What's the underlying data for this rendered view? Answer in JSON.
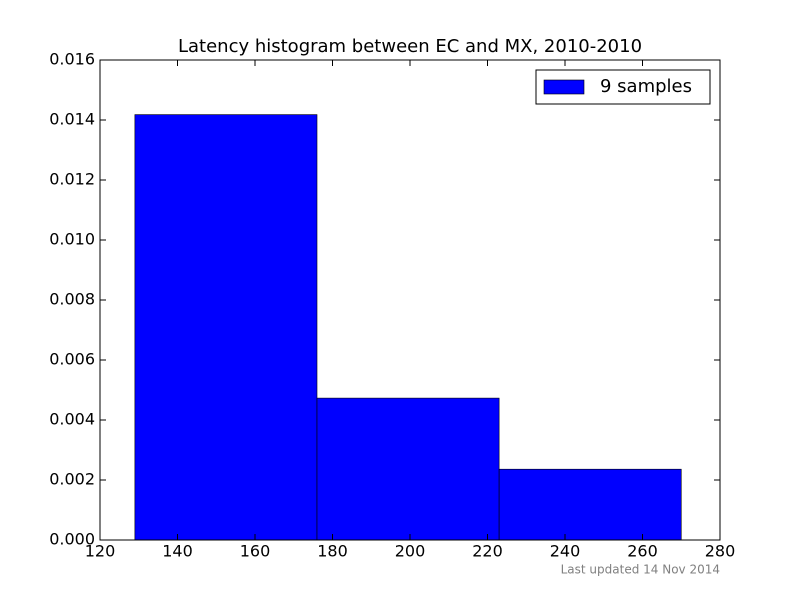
{
  "chart_data": {
    "type": "histogram",
    "title": "Latency histogram between EC and MX, 2010-2010",
    "bins": [
      129,
      176,
      223,
      270
    ],
    "series": [
      {
        "name": "9 samples",
        "color": "#0000ff",
        "values": [
          0.01418,
          0.00473,
          0.00236
        ]
      }
    ],
    "xlim": [
      120,
      280
    ],
    "xticks": [
      120,
      140,
      160,
      180,
      200,
      220,
      240,
      260,
      280
    ],
    "ylim": [
      0,
      0.016
    ],
    "yticks": [
      {
        "value": 0,
        "label": "0.000"
      },
      {
        "value": 0.002,
        "label": "0.002"
      },
      {
        "value": 0.004,
        "label": "0.004"
      },
      {
        "value": 0.006,
        "label": "0.006"
      },
      {
        "value": 0.008,
        "label": "0.008"
      },
      {
        "value": 0.01,
        "label": "0.010"
      },
      {
        "value": 0.012,
        "label": "0.012"
      },
      {
        "value": 0.014,
        "label": "0.014"
      },
      {
        "value": 0.016,
        "label": "0.016"
      }
    ],
    "legend": "upper right",
    "grid": false
  },
  "footer": "Last updated 14 Nov 2014"
}
